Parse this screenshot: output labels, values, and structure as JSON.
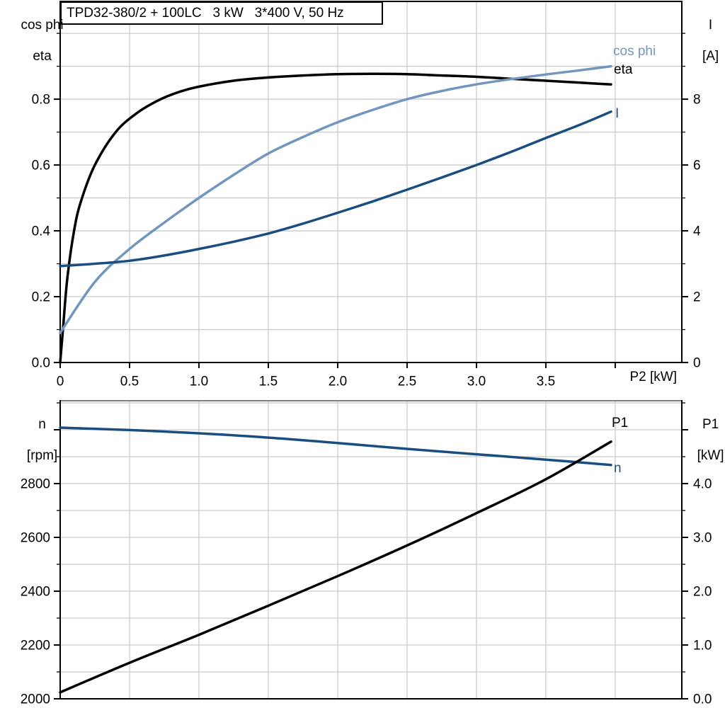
{
  "colors": {
    "curve_black": "#000000",
    "light_blue": "#7396be",
    "dark_blue": "#1a4d80",
    "grid": "#cccccc",
    "frame": "#000000",
    "frame_gray": "#7f7f7f",
    "text": "#000000"
  },
  "chart_data": [
    {
      "type": "line",
      "title": "TPD32-380/2 + 100LC   3 kW   3*400 V, 50 Hz",
      "x_axis": {
        "label": "P2 [kW]",
        "min": 0,
        "max": 4.48,
        "grid_step": 0.5,
        "show_ticks": true,
        "ticks": [
          0,
          0.5,
          1,
          1.5,
          2,
          2.5,
          3,
          3.5,
          4
        ],
        "tick_labels": [
          "0",
          "0.5",
          "1.0",
          "1.5",
          "2.0",
          "2.5",
          "3.0",
          "3.5",
          ""
        ]
      },
      "left_axis": {
        "title_lines": [
          "cos phi",
          "eta"
        ],
        "min": 0,
        "max": 1.097,
        "grid_step": 0.1,
        "ticks": [
          0,
          0.2,
          0.4,
          0.6,
          0.8
        ],
        "tick_labels": [
          "0.0",
          "0.2",
          "0.4",
          "0.6",
          "0.8"
        ]
      },
      "right_axis": {
        "title_lines": [
          "I",
          "[A]"
        ],
        "min": 0,
        "max": 10.97,
        "grid_step": 1,
        "ticks": [
          0,
          2,
          4,
          6,
          8
        ],
        "tick_labels": [
          "0",
          "2",
          "4",
          "6",
          "8"
        ]
      },
      "series": [
        {
          "name": "eta",
          "label": "eta",
          "color": "curve_black",
          "axis": "left",
          "points": [
            [
              0,
              0
            ],
            [
              0.02,
              0.1
            ],
            [
              0.05,
              0.25
            ],
            [
              0.1,
              0.4
            ],
            [
              0.15,
              0.49
            ],
            [
              0.25,
              0.6
            ],
            [
              0.4,
              0.7
            ],
            [
              0.55,
              0.757
            ],
            [
              0.7,
              0.795
            ],
            [
              0.85,
              0.821
            ],
            [
              1,
              0.838
            ],
            [
              1.25,
              0.856
            ],
            [
              1.5,
              0.866
            ],
            [
              1.75,
              0.872
            ],
            [
              2,
              0.876
            ],
            [
              2.25,
              0.877
            ],
            [
              2.5,
              0.876
            ],
            [
              2.75,
              0.872
            ],
            [
              3,
              0.868
            ],
            [
              3.25,
              0.862
            ],
            [
              3.5,
              0.856
            ],
            [
              3.75,
              0.85
            ],
            [
              3.97,
              0.845
            ]
          ]
        },
        {
          "name": "cos_phi",
          "label": "cos phi",
          "color": "light_blue",
          "axis": "left",
          "points": [
            [
              0,
              0.09
            ],
            [
              0.25,
              0.245
            ],
            [
              0.5,
              0.345
            ],
            [
              0.75,
              0.425
            ],
            [
              1,
              0.5
            ],
            [
              1.25,
              0.57
            ],
            [
              1.5,
              0.635
            ],
            [
              1.75,
              0.685
            ],
            [
              2,
              0.73
            ],
            [
              2.25,
              0.767
            ],
            [
              2.5,
              0.8
            ],
            [
              2.75,
              0.825
            ],
            [
              3,
              0.845
            ],
            [
              3.25,
              0.861
            ],
            [
              3.5,
              0.875
            ],
            [
              3.75,
              0.888
            ],
            [
              3.97,
              0.9
            ]
          ]
        },
        {
          "name": "I",
          "label": "I",
          "color": "dark_blue",
          "axis": "right",
          "points": [
            [
              0,
              2.93
            ],
            [
              0.25,
              3.0
            ],
            [
              0.5,
              3.09
            ],
            [
              0.75,
              3.25
            ],
            [
              1,
              3.45
            ],
            [
              1.25,
              3.67
            ],
            [
              1.5,
              3.92
            ],
            [
              1.75,
              4.22
            ],
            [
              2,
              4.55
            ],
            [
              2.25,
              4.89
            ],
            [
              2.5,
              5.25
            ],
            [
              2.75,
              5.62
            ],
            [
              3,
              6.0
            ],
            [
              3.25,
              6.4
            ],
            [
              3.5,
              6.82
            ],
            [
              3.75,
              7.23
            ],
            [
              3.97,
              7.62
            ]
          ]
        }
      ]
    },
    {
      "type": "line",
      "title": "",
      "x_axis": {
        "label": "",
        "min": 0,
        "max": 4.48,
        "grid_step": 0.5,
        "show_ticks": false,
        "ticks": [],
        "tick_labels": []
      },
      "left_axis": {
        "title_lines": [
          "n",
          "[rpm]"
        ],
        "min": 2000,
        "max": 3108,
        "grid_step": 100,
        "ticks": [
          2000,
          2200,
          2400,
          2600,
          2800,
          3000
        ],
        "tick_labels": [
          "2000",
          "2200",
          "2400",
          "2600",
          "2800",
          ""
        ]
      },
      "right_axis": {
        "title_lines": [
          "P1",
          "[kW]"
        ],
        "min": 0,
        "max": 5.54,
        "grid_step": 0.5,
        "ticks": [
          0,
          1,
          2,
          3,
          4,
          5
        ],
        "tick_labels": [
          "0.0",
          "1.0",
          "2.0",
          "3.0",
          "4.0",
          ""
        ]
      },
      "series": [
        {
          "name": "n",
          "label": "n",
          "color": "dark_blue",
          "axis": "left",
          "points": [
            [
              0,
              3008
            ],
            [
              0.5,
              2999
            ],
            [
              1,
              2987
            ],
            [
              1.5,
              2971
            ],
            [
              2,
              2951
            ],
            [
              2.5,
              2929
            ],
            [
              3,
              2909
            ],
            [
              3.5,
              2889
            ],
            [
              3.97,
              2869
            ]
          ]
        },
        {
          "name": "P1",
          "label": "P1",
          "color": "curve_black",
          "axis": "right",
          "points": [
            [
              0,
              0.12
            ],
            [
              0.5,
              0.67
            ],
            [
              1,
              1.19
            ],
            [
              1.5,
              1.73
            ],
            [
              2,
              2.28
            ],
            [
              2.5,
              2.85
            ],
            [
              3,
              3.45
            ],
            [
              3.5,
              4.08
            ],
            [
              3.97,
              4.78
            ]
          ]
        }
      ]
    }
  ]
}
